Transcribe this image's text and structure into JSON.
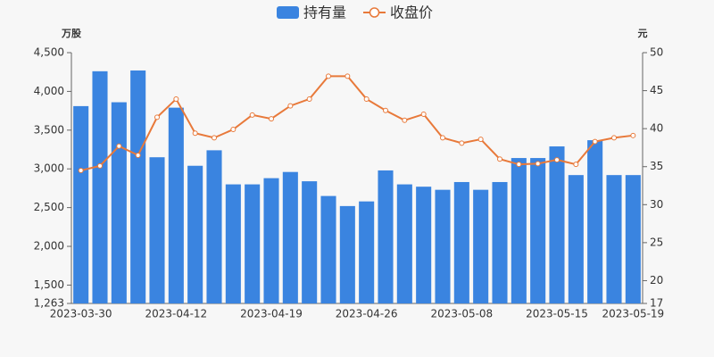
{
  "chart_data": {
    "type": "bar",
    "y_label": "万股",
    "y2_label": "元",
    "categories": [
      "2023-03-30",
      null,
      null,
      null,
      null,
      "2023-04-12",
      null,
      null,
      null,
      null,
      "2023-04-19",
      null,
      null,
      null,
      null,
      "2023-04-26",
      null,
      null,
      null,
      null,
      "2023-05-08",
      null,
      null,
      null,
      null,
      "2023-05-15",
      null,
      null,
      null,
      "2023-05-19"
    ],
    "series": [
      {
        "name": "持有量",
        "type": "bar",
        "color": "#3a84e0",
        "values": [
          3810,
          4260,
          3860,
          4270,
          3150,
          3790,
          3040,
          3240,
          2800,
          2800,
          2880,
          2960,
          2840,
          2650,
          2520,
          2580,
          2980,
          2800,
          2770,
          2730,
          2830,
          2730,
          2830,
          3140,
          3140,
          3290,
          2920,
          3370,
          2920,
          2920
        ]
      },
      {
        "name": "收盘价",
        "type": "line",
        "axis": "y2",
        "color": "#e8793a",
        "values": [
          34.5,
          35.1,
          37.7,
          36.5,
          41.5,
          43.9,
          39.4,
          38.8,
          39.9,
          41.8,
          41.3,
          43.0,
          43.9,
          46.9,
          46.9,
          43.9,
          42.4,
          41.1,
          41.9,
          38.8,
          38.1,
          38.6,
          36.0,
          35.3,
          35.4,
          35.9,
          35.3,
          38.3,
          38.8,
          39.1
        ]
      }
    ],
    "ylim": [
      1263,
      4500
    ],
    "yticks": [
      {
        "value": 1263,
        "label": "1,263"
      },
      {
        "value": 1500,
        "label": "1,500"
      },
      {
        "value": 2000,
        "label": "2,000"
      },
      {
        "value": 2500,
        "label": "2,500"
      },
      {
        "value": 3000,
        "label": "3,000"
      },
      {
        "value": 3500,
        "label": "3,500"
      },
      {
        "value": 4000,
        "label": "4,000"
      },
      {
        "value": 4500,
        "label": "4,500"
      }
    ],
    "y2lim": [
      17,
      50
    ],
    "y2ticks": [
      17,
      20,
      25,
      30,
      35,
      40,
      45,
      50
    ]
  }
}
